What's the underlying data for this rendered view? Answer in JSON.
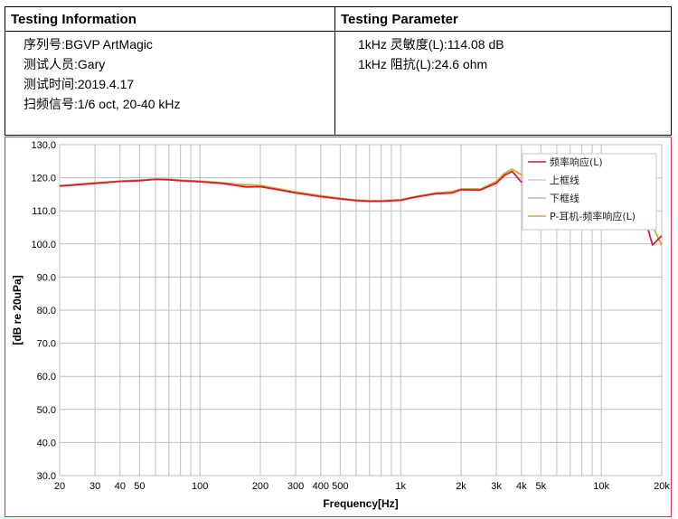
{
  "info": {
    "left": {
      "title": "Testing Information",
      "lines": [
        "序列号:BGVP ArtMagic",
        "测试人员:Gary",
        "测试时间:2019.4.17",
        "扫频信号:1/6 oct, 20-40 kHz"
      ]
    },
    "right": {
      "title": "Testing Parameter",
      "lines": [
        "1kHz 灵敏度(L):114.08 dB",
        "1kHz 阻抗(L):24.6 ohm"
      ]
    }
  },
  "chart_data": {
    "type": "line",
    "xlabel": "Frequency[Hz]",
    "ylabel": "[dB re 20uPa]",
    "xscale": "log",
    "xlim": [
      20,
      20000
    ],
    "ylim": [
      30,
      130
    ],
    "x_ticks": [
      20,
      30,
      40,
      50,
      100,
      200,
      300,
      400,
      500,
      1000,
      2000,
      3000,
      4000,
      5000,
      10000,
      20000
    ],
    "x_tick_labels": [
      "20",
      "30",
      "40",
      "50",
      "100",
      "200",
      "300",
      "400",
      "500",
      "1k",
      "2k",
      "3k",
      "4k",
      "5k",
      "10k",
      "20k"
    ],
    "y_ticks": [
      30,
      40,
      50,
      60,
      70,
      80,
      90,
      100,
      110,
      120,
      130
    ],
    "y_tick_labels": [
      "30.0",
      "40.0",
      "50.0",
      "60.0",
      "70.0",
      "80.0",
      "90.0",
      "100.0",
      "110.0",
      "120.0",
      "130.0"
    ],
    "grid": true,
    "legend_position": "top-right",
    "series": [
      {
        "name": "频率响应(L)",
        "color": "#d41c3c",
        "x": [
          20,
          30,
          40,
          50,
          60,
          70,
          80,
          100,
          130,
          150,
          170,
          200,
          250,
          300,
          400,
          500,
          600,
          700,
          800,
          1000,
          1200,
          1500,
          1800,
          2000,
          2500,
          3000,
          3300,
          3600,
          4000,
          4500,
          5000,
          5500,
          6000,
          7000,
          8000,
          9000,
          10000,
          12000,
          14000,
          16000,
          18000,
          20000
        ],
        "y": [
          117.5,
          118.3,
          118.9,
          119.1,
          119.5,
          119.4,
          119.1,
          118.8,
          118.3,
          117.7,
          117.2,
          117.3,
          116.3,
          115.4,
          114.3,
          113.6,
          113.1,
          112.9,
          112.9,
          113.2,
          114.2,
          115.2,
          115.4,
          116.4,
          116.3,
          118.4,
          120.8,
          121.9,
          118.7,
          119.1,
          121.6,
          121.0,
          122.3,
          122.6,
          118.8,
          114.2,
          114.8,
          107.3,
          105.5,
          110.4,
          99.7,
          102.5
        ]
      },
      {
        "name": "上框线",
        "color": "#e8c4c4",
        "x": [],
        "y": []
      },
      {
        "name": "下框线",
        "color": "#c4b4e8",
        "x": [],
        "y": []
      },
      {
        "name": "P-耳机-频率响应(L)",
        "color": "#d4a82c",
        "x": [
          20,
          30,
          40,
          50,
          60,
          70,
          80,
          100,
          130,
          150,
          170,
          200,
          250,
          300,
          400,
          500,
          600,
          700,
          800,
          1000,
          1200,
          1500,
          1800,
          2000,
          2500,
          3000,
          3300,
          3600,
          4000,
          4500,
          5000,
          5500,
          6000,
          7000,
          8000,
          9000,
          10000,
          12000,
          14000,
          16000,
          18000,
          20000
        ],
        "y": [
          117.6,
          118.5,
          119.0,
          119.3,
          119.6,
          119.5,
          119.3,
          119.0,
          118.5,
          118.1,
          117.9,
          117.7,
          116.6,
          115.7,
          114.6,
          113.8,
          113.3,
          113.1,
          113.1,
          113.4,
          114.4,
          115.4,
          115.8,
          116.6,
          116.6,
          118.9,
          121.4,
          122.6,
          120.9,
          118.8,
          121.9,
          122.2,
          121.6,
          121.9,
          119.8,
          116.4,
          116.1,
          110.0,
          107.0,
          106.9,
          105.5,
          99.6
        ]
      }
    ]
  }
}
